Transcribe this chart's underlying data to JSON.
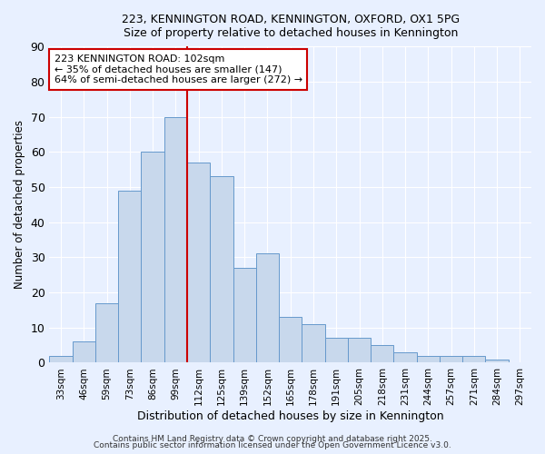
{
  "title": "223, KENNINGTON ROAD, KENNINGTON, OXFORD, OX1 5PG",
  "subtitle": "Size of property relative to detached houses in Kennington",
  "xlabel": "Distribution of detached houses by size in Kennington",
  "ylabel": "Number of detached properties",
  "bin_labels": [
    "33sqm",
    "46sqm",
    "59sqm",
    "73sqm",
    "86sqm",
    "99sqm",
    "112sqm",
    "125sqm",
    "139sqm",
    "152sqm",
    "165sqm",
    "178sqm",
    "191sqm",
    "205sqm",
    "218sqm",
    "231sqm",
    "244sqm",
    "257sqm",
    "271sqm",
    "284sqm",
    "297sqm"
  ],
  "bar_values": [
    2,
    6,
    17,
    49,
    60,
    70,
    57,
    53,
    27,
    31,
    13,
    11,
    7,
    7,
    5,
    3,
    2,
    2,
    2,
    1,
    0
  ],
  "bar_color": "#c8d8ec",
  "bar_edge_color": "#6699cc",
  "vline_x": 5.5,
  "vline_color": "#cc0000",
  "annotation_text": "223 KENNINGTON ROAD: 102sqm\n← 35% of detached houses are smaller (147)\n64% of semi-detached houses are larger (272) →",
  "annotation_box_color": "#ffffff",
  "annotation_box_edge": "#cc0000",
  "ylim": [
    0,
    90
  ],
  "yticks": [
    0,
    10,
    20,
    30,
    40,
    50,
    60,
    70,
    80,
    90
  ],
  "bg_color": "#e8f0ff",
  "grid_color": "#ffffff",
  "footer1": "Contains HM Land Registry data © Crown copyright and database right 2025.",
  "footer2": "Contains public sector information licensed under the Open Government Licence v3.0."
}
